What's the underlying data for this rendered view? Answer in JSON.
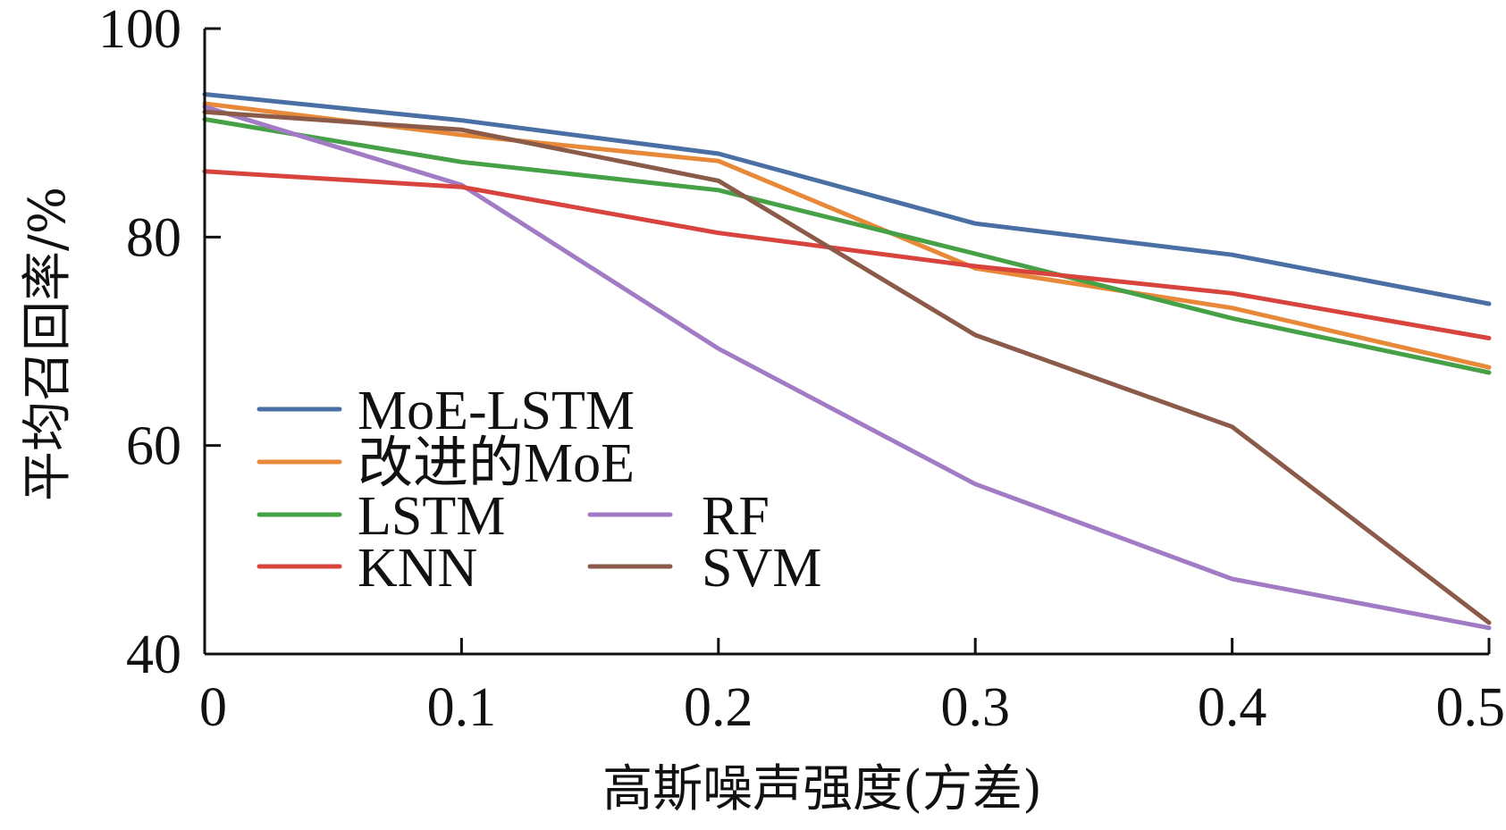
{
  "chart_data": {
    "type": "line",
    "xlabel": "高斯噪声强度(方差)",
    "ylabel": "平均召回率/%",
    "x": [
      0,
      0.1,
      0.2,
      0.3,
      0.4,
      0.5
    ],
    "x_tick_labels": [
      "0",
      "0.1",
      "0.2",
      "0.3",
      "0.4",
      "0.5"
    ],
    "xlim": [
      0,
      0.5
    ],
    "ylim": [
      40,
      100
    ],
    "y_ticks": [
      40,
      60,
      80,
      100
    ],
    "y_tick_labels": [
      "40",
      "60",
      "80",
      "100"
    ],
    "grid": false,
    "legend_position": "lower-left",
    "series": [
      {
        "name": "MoE-LSTM",
        "color": "#4a6fa5",
        "values": [
          93.7,
          91.2,
          88.0,
          81.3,
          78.3,
          73.6
        ]
      },
      {
        "name": "改进的MoE",
        "color": "#e8893a",
        "values": [
          92.8,
          89.8,
          87.3,
          77.0,
          73.2,
          67.5
        ]
      },
      {
        "name": "LSTM",
        "color": "#45a046",
        "values": [
          91.3,
          87.2,
          84.5,
          78.4,
          72.2,
          67.0
        ]
      },
      {
        "name": "RF",
        "color": "#a27bc5",
        "values": [
          92.5,
          85.0,
          69.3,
          56.3,
          47.2,
          42.5
        ]
      },
      {
        "name": "KNN",
        "color": "#d8433d",
        "values": [
          86.3,
          84.8,
          80.4,
          77.2,
          74.6,
          70.3
        ]
      },
      {
        "name": "SVM",
        "color": "#8b5a48",
        "values": [
          92.0,
          90.3,
          85.4,
          70.6,
          61.8,
          43.0
        ]
      }
    ]
  }
}
